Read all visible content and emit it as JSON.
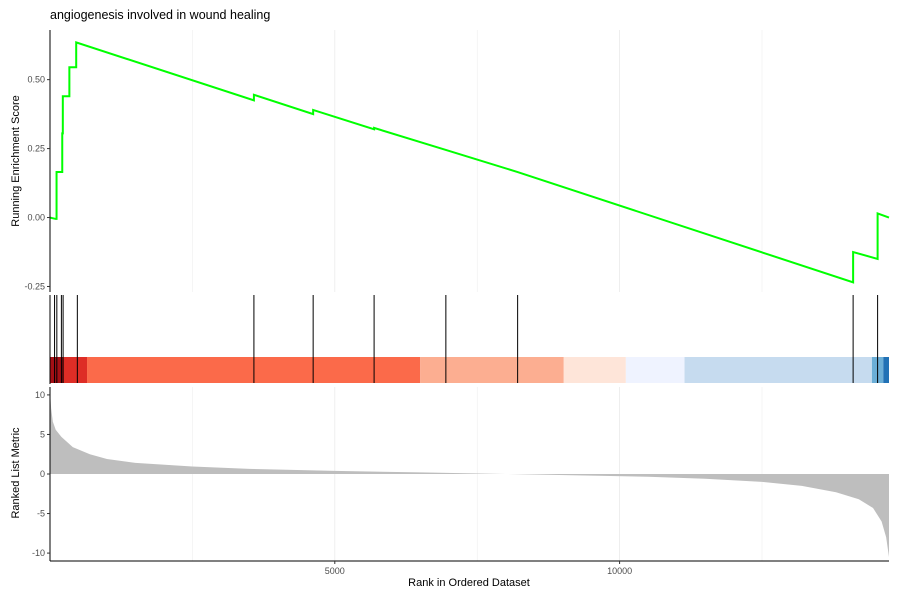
{
  "chart_data": {
    "type": "line",
    "title": "angiogenesis involved in wound healing",
    "xlabel": "Rank in Ordered Dataset",
    "xlim": [
      0,
      14730
    ],
    "x_ticks": [
      5000,
      10000
    ],
    "x_tick_labels": [
      "5000",
      "10000"
    ],
    "grid": true,
    "panels": {
      "enrichment": {
        "ylabel": "Running Enrichment Score",
        "ylim": [
          -0.27,
          0.68
        ],
        "y_ticks": [
          -0.25,
          0,
          0.25,
          0.5
        ],
        "y_tick_labels": [
          "-0.25",
          "0.00",
          "0.25",
          "0.50"
        ],
        "line_color": "#00ff00",
        "points": [
          [
            0,
            0
          ],
          [
            100,
            -0.005
          ],
          [
            115,
            -0.005
          ],
          [
            115,
            0.165
          ],
          [
            215,
            0.165
          ],
          [
            215,
            0.305
          ],
          [
            225,
            0.305
          ],
          [
            225,
            0.44
          ],
          [
            340,
            0.44
          ],
          [
            340,
            0.545
          ],
          [
            460,
            0.545
          ],
          [
            460,
            0.635
          ],
          [
            3580,
            0.425
          ],
          [
            3580,
            0.445
          ],
          [
            4620,
            0.375
          ],
          [
            4620,
            0.39
          ],
          [
            5690,
            0.32
          ],
          [
            5690,
            0.325
          ],
          [
            6950,
            0.245
          ],
          [
            8210,
            0.165
          ],
          [
            8210,
            0.165
          ],
          [
            14100,
            -0.235
          ],
          [
            14100,
            -0.125
          ],
          [
            14530,
            -0.15
          ],
          [
            14530,
            0.015
          ],
          [
            14730,
            0.0
          ]
        ]
      },
      "hits": {
        "gene_hit_ranks": [
          80,
          120,
          200,
          230,
          480,
          3580,
          4620,
          5690,
          6950,
          8210,
          14100,
          14530
        ],
        "color_bands": [
          {
            "from": 0,
            "to": 230,
            "color": "#a50f15"
          },
          {
            "from": 230,
            "to": 650,
            "color": "#de2d26"
          },
          {
            "from": 650,
            "to": 6500,
            "color": "#fb6a4a"
          },
          {
            "from": 6500,
            "to": 9020,
            "color": "#fcae91"
          },
          {
            "from": 9020,
            "to": 10110,
            "color": "#fee5d9"
          },
          {
            "from": 10110,
            "to": 11140,
            "color": "#eff3ff"
          },
          {
            "from": 11140,
            "to": 14430,
            "color": "#c6dbef"
          },
          {
            "from": 14430,
            "to": 14630,
            "color": "#6baed6"
          },
          {
            "from": 14630,
            "to": 14730,
            "color": "#2171b5"
          }
        ]
      },
      "ranked_metric": {
        "ylabel": "Ranked List Metric",
        "ylim": [
          -11,
          11
        ],
        "y_ticks": [
          -10,
          -5,
          0,
          5,
          10
        ],
        "y_tick_labels": [
          "-10",
          "-5",
          "0",
          "5",
          "10"
        ],
        "fill_color": "#bebebe",
        "points": [
          [
            0,
            10.5
          ],
          [
            20,
            8.3
          ],
          [
            50,
            6.6
          ],
          [
            100,
            5.6
          ],
          [
            200,
            4.7
          ],
          [
            400,
            3.4
          ],
          [
            700,
            2.5
          ],
          [
            1000,
            1.9
          ],
          [
            1500,
            1.4
          ],
          [
            2500,
            0.95
          ],
          [
            3500,
            0.65
          ],
          [
            5000,
            0.4
          ],
          [
            6500,
            0.2
          ],
          [
            8000,
            0.0
          ],
          [
            9500,
            -0.2
          ],
          [
            10500,
            -0.35
          ],
          [
            11500,
            -0.6
          ],
          [
            12500,
            -1.0
          ],
          [
            13200,
            -1.5
          ],
          [
            13800,
            -2.3
          ],
          [
            14200,
            -3.2
          ],
          [
            14450,
            -4.3
          ],
          [
            14600,
            -6.0
          ],
          [
            14680,
            -8.0
          ],
          [
            14730,
            -10.5
          ]
        ]
      }
    }
  }
}
